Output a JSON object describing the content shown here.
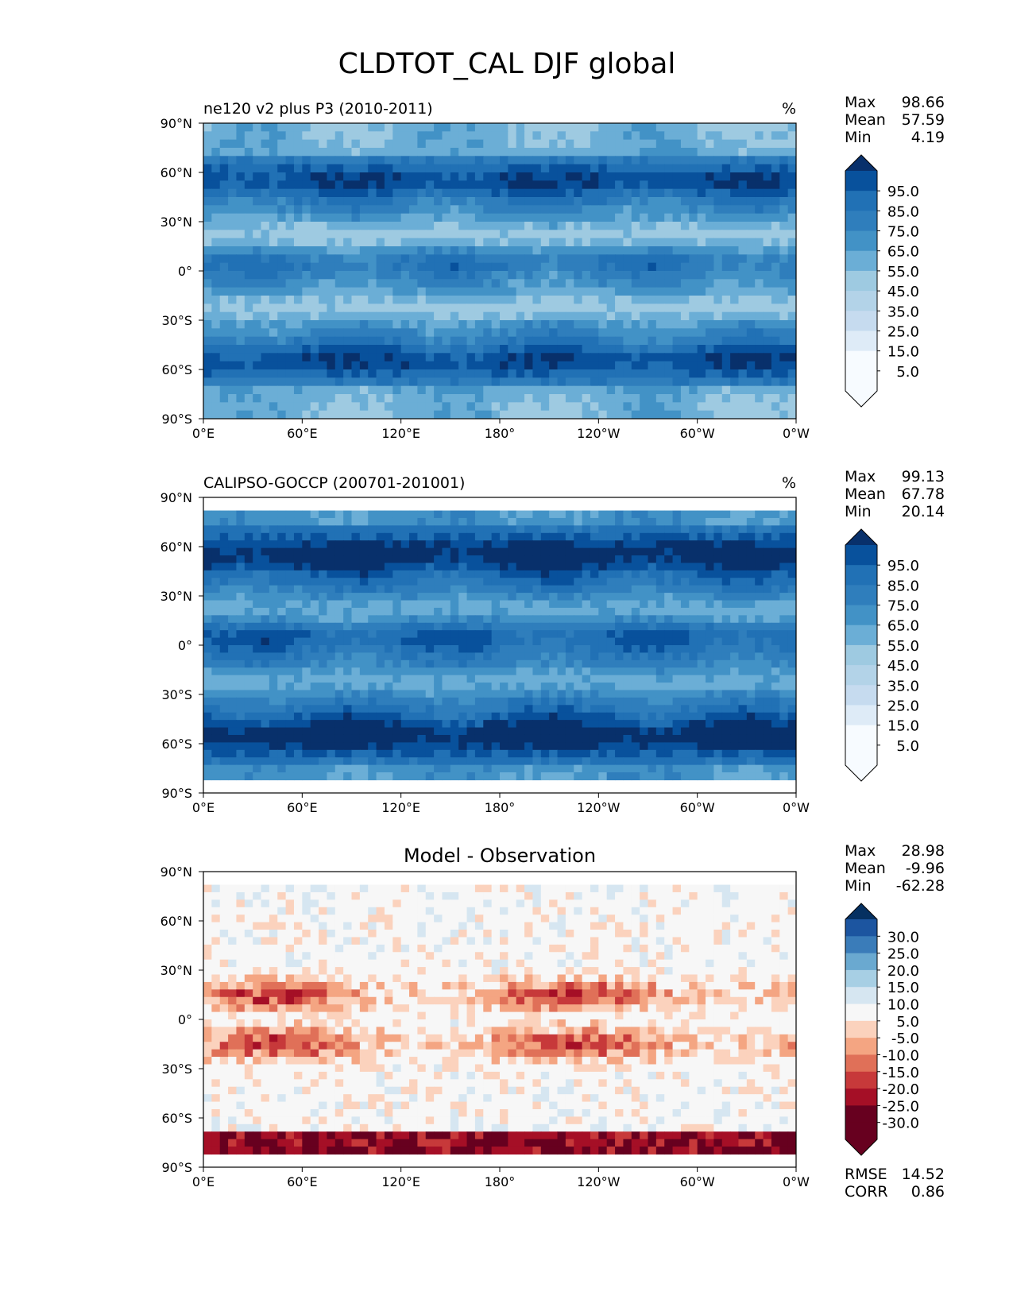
{
  "figure": {
    "title": "CLDTOT_CAL DJF global"
  },
  "palettes": {
    "sequential": [
      "#f7fbff",
      "#deebf7",
      "#c6dbef",
      "#b3d3e8",
      "#9ecae1",
      "#6baed6",
      "#4292c6",
      "#2f7ebc",
      "#2171b5",
      "#08519c",
      "#08306b"
    ],
    "diverging": [
      "#67001f",
      "#a50f26",
      "#c7393a",
      "#e07058",
      "#f4a582",
      "#fbd2bd",
      "#f7f7f7",
      "#d6e6f1",
      "#a7cfe4",
      "#6aa9d0",
      "#3a7cb9",
      "#1c55a0",
      "#053061"
    ]
  },
  "chart_data": [
    {
      "type": "heatmap",
      "panel": "test",
      "title": "ne120 v2 plus P3 (2010-2011)",
      "units": "%",
      "xticks": [
        "0°E",
        "60°E",
        "120°E",
        "180°",
        "120°W",
        "60°W",
        "0°W"
      ],
      "yticks": [
        "90°N",
        "60°N",
        "30°N",
        "0°",
        "30°S",
        "60°S",
        "90°S"
      ],
      "xlim": [
        0,
        360
      ],
      "ylim": [
        -90,
        90
      ],
      "data_lat_range": [
        -90,
        90
      ],
      "stats": [
        {
          "label": "Max",
          "value": "98.66"
        },
        {
          "label": "Mean",
          "value": "57.59"
        },
        {
          "label": "Min",
          "value": "4.19"
        }
      ],
      "colorbar": {
        "palette": "sequential",
        "levels": [
          "95.0",
          "85.0",
          "75.0",
          "65.0",
          "55.0",
          "45.0",
          "35.0",
          "25.0",
          "15.0",
          "5.0"
        ],
        "extend": "both"
      },
      "field_mean": 57.59
    },
    {
      "type": "heatmap",
      "panel": "reference",
      "title": "CALIPSO-GOCCP (200701-201001)",
      "units": "%",
      "xticks": [
        "0°E",
        "60°E",
        "120°E",
        "180°",
        "120°W",
        "60°W",
        "0°W"
      ],
      "yticks": [
        "90°N",
        "60°N",
        "30°N",
        "0°",
        "30°S",
        "60°S",
        "90°S"
      ],
      "xlim": [
        0,
        360
      ],
      "ylim": [
        -90,
        90
      ],
      "data_lat_range": [
        -82,
        82
      ],
      "stats": [
        {
          "label": "Max",
          "value": "99.13"
        },
        {
          "label": "Mean",
          "value": "67.78"
        },
        {
          "label": "Min",
          "value": "20.14"
        }
      ],
      "colorbar": {
        "palette": "sequential",
        "levels": [
          "95.0",
          "85.0",
          "75.0",
          "65.0",
          "55.0",
          "45.0",
          "35.0",
          "25.0",
          "15.0",
          "5.0"
        ],
        "extend": "both"
      },
      "field_mean": 67.78
    },
    {
      "type": "heatmap",
      "panel": "difference",
      "title": "Model - Observation",
      "units": "",
      "xticks": [
        "0°E",
        "60°E",
        "120°E",
        "180°",
        "120°W",
        "60°W",
        "0°W"
      ],
      "yticks": [
        "90°N",
        "60°N",
        "30°N",
        "0°",
        "30°S",
        "60°S",
        "90°S"
      ],
      "xlim": [
        0,
        360
      ],
      "ylim": [
        -90,
        90
      ],
      "data_lat_range": [
        -82,
        82
      ],
      "stats": [
        {
          "label": "Max",
          "value": "28.98"
        },
        {
          "label": "Mean",
          "value": "-9.96"
        },
        {
          "label": "Min",
          "value": "-62.28"
        }
      ],
      "extra_stats": [
        {
          "label": "RMSE",
          "value": "14.52"
        },
        {
          "label": "CORR",
          "value": "0.86"
        }
      ],
      "colorbar": {
        "palette": "diverging",
        "levels": [
          "30.0",
          "25.0",
          "20.0",
          "15.0",
          "10.0",
          "5.0",
          "-5.0",
          "-10.0",
          "-15.0",
          "-20.0",
          "-25.0",
          "-30.0"
        ],
        "extend": "both"
      },
      "field_mean": -9.96
    }
  ]
}
